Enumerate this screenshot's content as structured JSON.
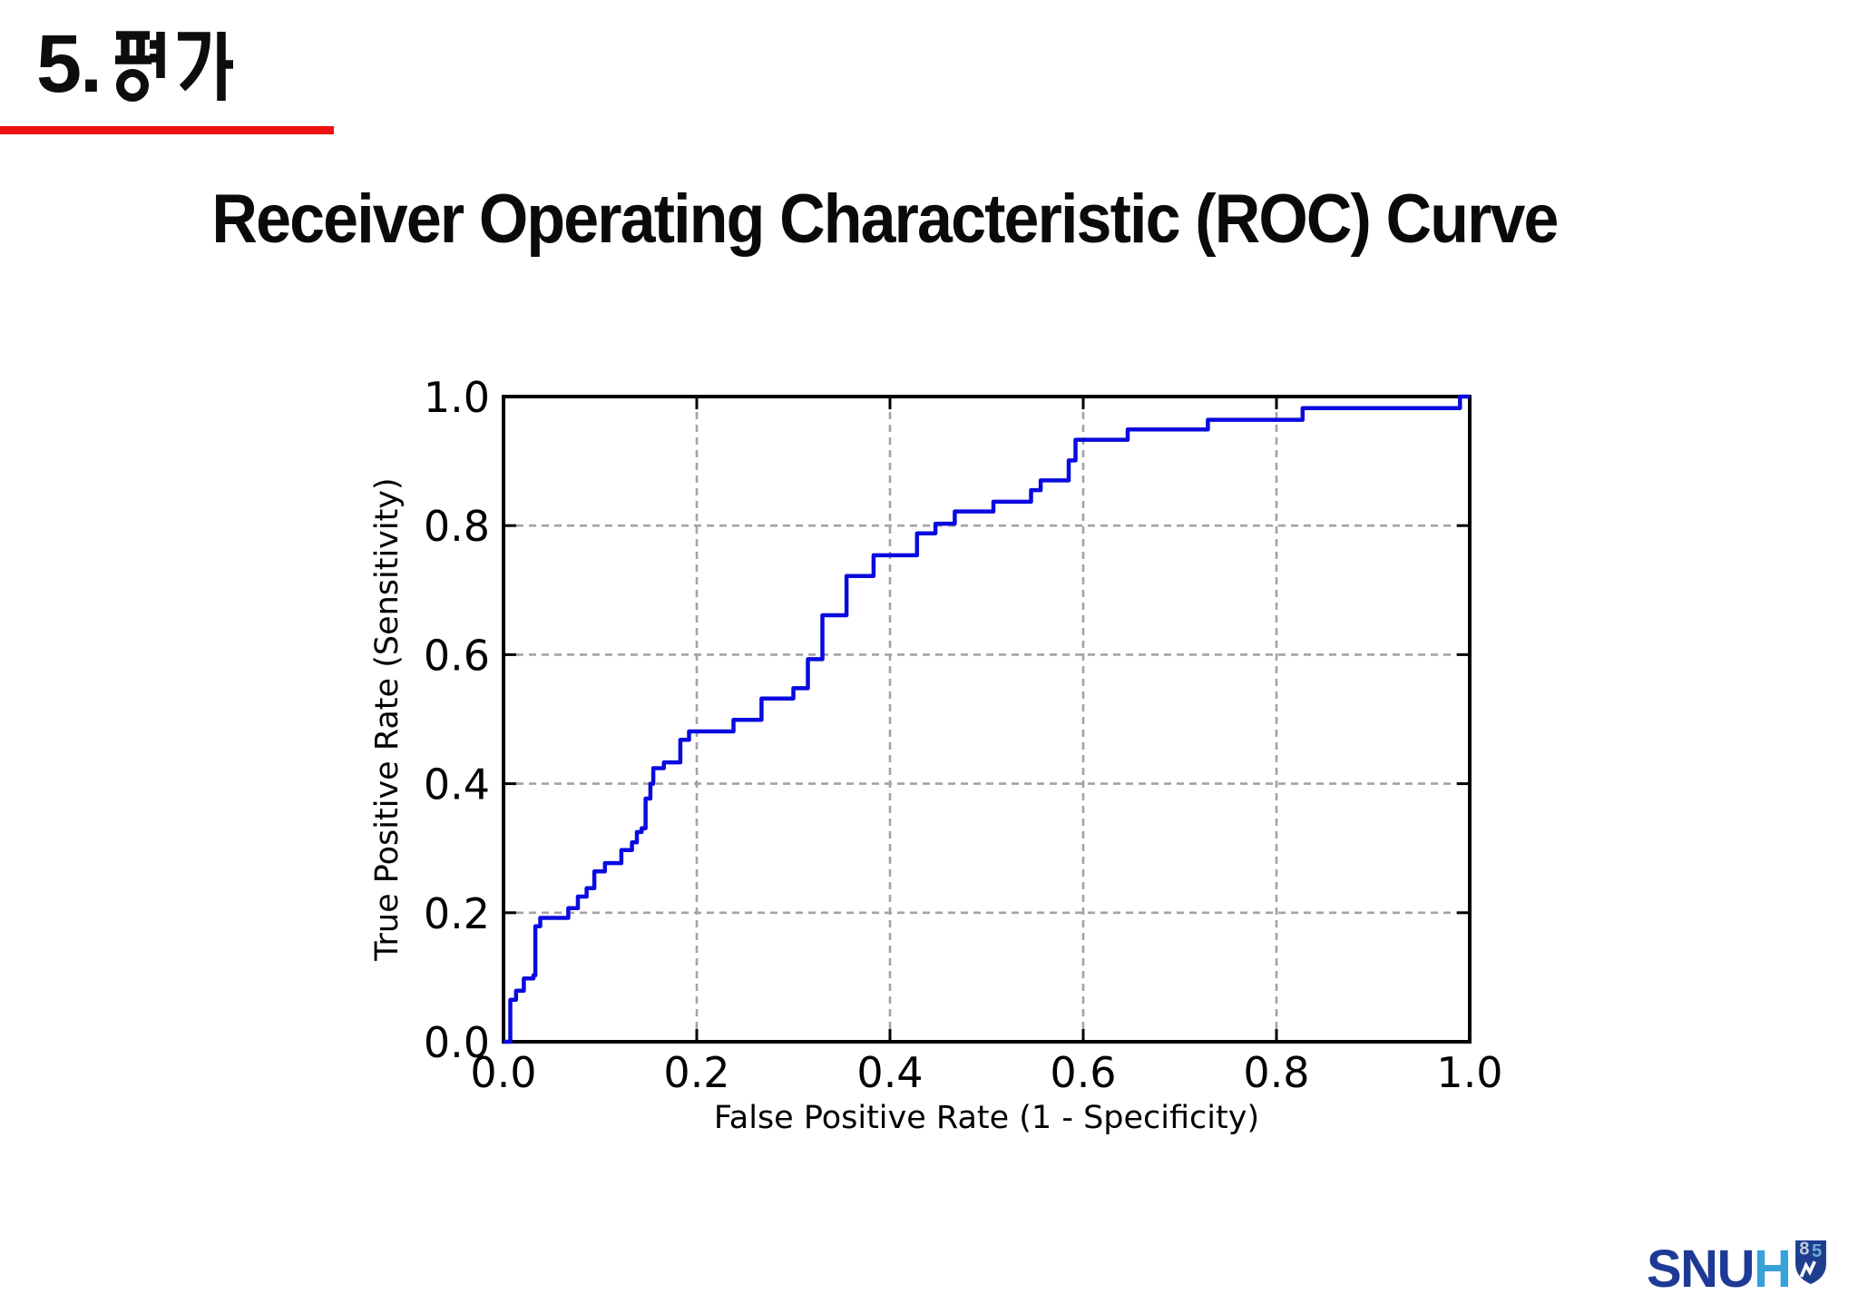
{
  "slide": {
    "background_color": "#ffffff",
    "section": {
      "number": "5.",
      "label": "5. 평가",
      "label_korean": "평가",
      "underline_color": "#ee1212"
    },
    "title": "Receiver Operating Characteristic (ROC) Curve"
  },
  "chart_data": {
    "type": "line",
    "subtype": "roc_step_curve",
    "title": "Receiver Operating Characteristic (ROC) Curve",
    "xlabel": "False Positive Rate (1 - Specificity)",
    "ylabel": "True Positive Rate (Sensitivity)",
    "xlim": [
      0.0,
      1.0
    ],
    "ylim": [
      0.0,
      1.0
    ],
    "xticks": [
      "0.0",
      "0.2",
      "0.4",
      "0.6",
      "0.8",
      "1.0"
    ],
    "yticks": [
      "0.0",
      "0.2",
      "0.4",
      "0.6",
      "0.8",
      "1.0"
    ],
    "grid": true,
    "grid_style": "dashed",
    "legend": false,
    "line_color": "#0a0ae0",
    "grid_color": "#a3a3a3",
    "frame_color": "#000000",
    "points": [
      [
        0.0,
        0.0
      ],
      [
        0.007,
        0.0
      ],
      [
        0.007,
        0.065
      ],
      [
        0.013,
        0.065
      ],
      [
        0.013,
        0.079
      ],
      [
        0.021,
        0.079
      ],
      [
        0.021,
        0.098
      ],
      [
        0.031,
        0.098
      ],
      [
        0.031,
        0.103
      ],
      [
        0.033,
        0.103
      ],
      [
        0.033,
        0.179
      ],
      [
        0.038,
        0.179
      ],
      [
        0.038,
        0.192
      ],
      [
        0.067,
        0.192
      ],
      [
        0.067,
        0.207
      ],
      [
        0.077,
        0.207
      ],
      [
        0.077,
        0.225
      ],
      [
        0.086,
        0.225
      ],
      [
        0.086,
        0.238
      ],
      [
        0.094,
        0.238
      ],
      [
        0.094,
        0.264
      ],
      [
        0.105,
        0.264
      ],
      [
        0.105,
        0.277
      ],
      [
        0.122,
        0.277
      ],
      [
        0.122,
        0.297
      ],
      [
        0.133,
        0.297
      ],
      [
        0.133,
        0.309
      ],
      [
        0.138,
        0.309
      ],
      [
        0.138,
        0.325
      ],
      [
        0.143,
        0.325
      ],
      [
        0.143,
        0.331
      ],
      [
        0.147,
        0.331
      ],
      [
        0.147,
        0.377
      ],
      [
        0.152,
        0.377
      ],
      [
        0.152,
        0.4
      ],
      [
        0.155,
        0.4
      ],
      [
        0.155,
        0.424
      ],
      [
        0.166,
        0.424
      ],
      [
        0.166,
        0.433
      ],
      [
        0.183,
        0.433
      ],
      [
        0.183,
        0.468
      ],
      [
        0.192,
        0.468
      ],
      [
        0.192,
        0.481
      ],
      [
        0.238,
        0.481
      ],
      [
        0.238,
        0.499
      ],
      [
        0.267,
        0.499
      ],
      [
        0.267,
        0.532
      ],
      [
        0.3,
        0.532
      ],
      [
        0.3,
        0.548
      ],
      [
        0.315,
        0.548
      ],
      [
        0.315,
        0.593
      ],
      [
        0.33,
        0.593
      ],
      [
        0.33,
        0.661
      ],
      [
        0.355,
        0.661
      ],
      [
        0.355,
        0.722
      ],
      [
        0.383,
        0.722
      ],
      [
        0.383,
        0.754
      ],
      [
        0.428,
        0.754
      ],
      [
        0.428,
        0.788
      ],
      [
        0.447,
        0.788
      ],
      [
        0.447,
        0.803
      ],
      [
        0.467,
        0.803
      ],
      [
        0.467,
        0.822
      ],
      [
        0.507,
        0.822
      ],
      [
        0.507,
        0.837
      ],
      [
        0.546,
        0.837
      ],
      [
        0.546,
        0.855
      ],
      [
        0.556,
        0.855
      ],
      [
        0.556,
        0.87
      ],
      [
        0.585,
        0.87
      ],
      [
        0.585,
        0.901
      ],
      [
        0.592,
        0.901
      ],
      [
        0.592,
        0.933
      ],
      [
        0.646,
        0.933
      ],
      [
        0.646,
        0.949
      ],
      [
        0.729,
        0.949
      ],
      [
        0.729,
        0.964
      ],
      [
        0.827,
        0.964
      ],
      [
        0.827,
        0.982
      ],
      [
        0.99,
        0.982
      ],
      [
        0.99,
        1.0
      ],
      [
        1.0,
        1.0
      ]
    ]
  },
  "logo": {
    "text_snu": "SNU",
    "text_h": "H",
    "shield_digits": "85",
    "shield_digit_1": "8",
    "shield_digit_2": "5",
    "snu_color": "#1e3a96",
    "h_color": "#37a1da",
    "shield_color": "#1d3e8f"
  }
}
